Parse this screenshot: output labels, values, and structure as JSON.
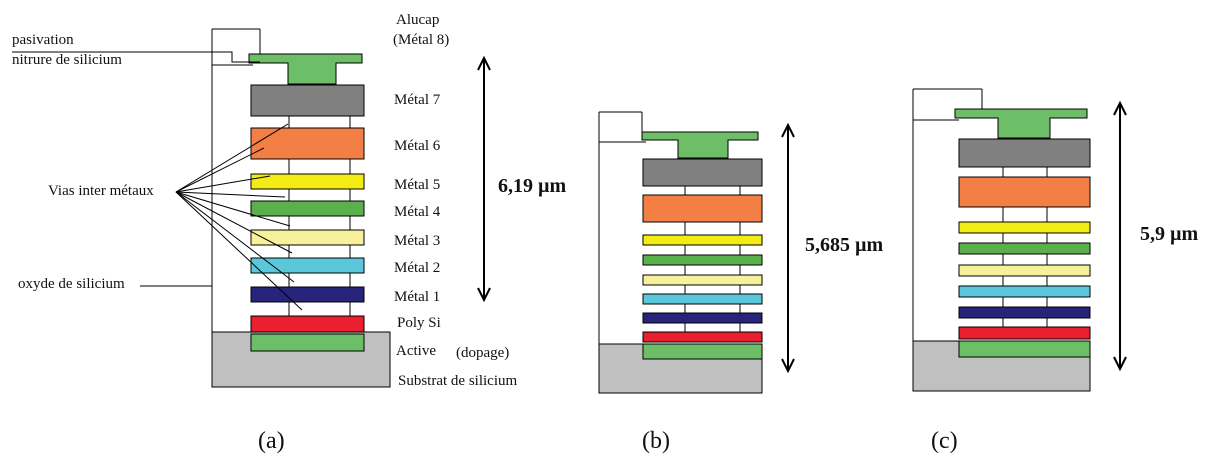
{
  "labels": {
    "pasivation_1": "pasivation",
    "pasivation_2": "nitrure de silicium",
    "vias": "Vias inter métaux",
    "oxyde": "oxyde de silicium",
    "alucap_1": "Alucap",
    "alucap_2": "(Métal 8)",
    "metal7": "Métal 7",
    "metal6": "Métal 6",
    "metal5": "Métal 5",
    "metal4": "Métal 4",
    "metal3": "Métal 3",
    "metal2": "Métal 2",
    "metal1": "Métal 1",
    "poly": "Poly Si",
    "active": "Active",
    "dopage": "(dopage)",
    "substrat": "Substrat de silicium"
  },
  "dimensions": {
    "a": "6,19 µm",
    "b": "5,685 µm",
    "c": "5,9 µm"
  },
  "captions": {
    "a": "(a)",
    "b": "(b)",
    "c": "(c)"
  },
  "colors": {
    "alucap": "#6cbf67",
    "metal7": "#808080",
    "metal6": "#f47f45",
    "metal5": "#f3ec14",
    "metal4": "#5ab04a",
    "metal3": "#f6f19a",
    "metal2": "#5bc7da",
    "metal1": "#26257a",
    "poly": "#ea2030",
    "active": "#6cbf67",
    "substrate": "#c0c0c0"
  }
}
